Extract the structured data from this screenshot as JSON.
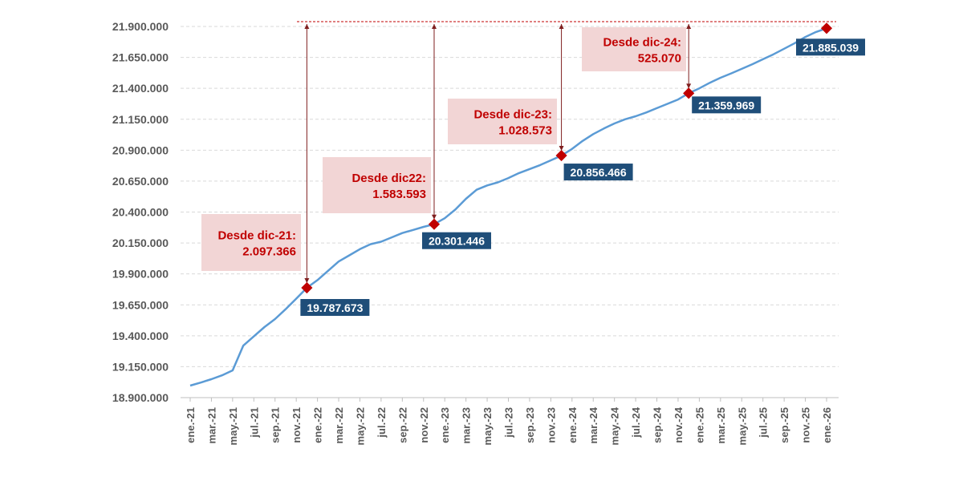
{
  "chart_data": {
    "type": "line",
    "title": "",
    "xlabel": "",
    "ylabel": "",
    "ylim": [
      18900000,
      21900000
    ],
    "ytick_step": 250000,
    "y_ticks": [
      "18.900.000",
      "19.150.000",
      "19.400.000",
      "19.650.000",
      "19.900.000",
      "20.150.000",
      "20.400.000",
      "20.650.000",
      "20.900.000",
      "21.150.000",
      "21.400.000",
      "21.650.000",
      "21.900.000"
    ],
    "x_tick_labels": [
      "ene.-21",
      "mar.-21",
      "may.-21",
      "jul.-21",
      "sep.-21",
      "nov.-21",
      "ene.-22",
      "mar.-22",
      "may.-22",
      "jul.-22",
      "sep.-22",
      "nov.-22",
      "ene.-23",
      "mar.-23",
      "may.-23",
      "jul.-23",
      "sep.-23",
      "nov.-23",
      "ene.-24",
      "mar.-24",
      "may.-24",
      "jul.-24",
      "sep.-24",
      "nov.-24",
      "ene.-25",
      "mar.-25",
      "may.-25",
      "jul.-25",
      "sep.-25",
      "nov.-25",
      "ene.-26"
    ],
    "x_start": "2021-01",
    "x_end": "2026-01",
    "grid": true,
    "line_color": "#5b9bd5",
    "marker_color": "#c00000",
    "label_box_color": "#1f4e79",
    "annotation_box_color": "#f2d5d5",
    "annotation_text_color": "#c00000",
    "values": [
      18997000,
      19022000,
      19049000,
      19080000,
      19120000,
      19320000,
      19395000,
      19470000,
      19535000,
      19615000,
      19700000,
      19787673,
      19850000,
      19925000,
      20000000,
      20050000,
      20100000,
      20140000,
      20160000,
      20195000,
      20230000,
      20255000,
      20280000,
      20301446,
      20350000,
      20420000,
      20507000,
      20580000,
      20615000,
      20640000,
      20675000,
      20715000,
      20747000,
      20780000,
      20818000,
      20856466,
      20910000,
      20975000,
      21030000,
      21075000,
      21116000,
      21150000,
      21174000,
      21205000,
      21240000,
      21275000,
      21310000,
      21359969,
      21400000,
      21445000,
      21485000,
      21520000,
      21557000,
      21595000,
      21635000,
      21675000,
      21720000,
      21765000,
      21815000,
      21855000,
      21885039
    ],
    "highlighted_points": [
      {
        "month": "2021-12",
        "value": 19787673,
        "label": "19.787.673",
        "annotation_line1": "Desde dic-21:",
        "annotation_line2": "2.097.366"
      },
      {
        "month": "2022-12",
        "value": 20301446,
        "label": "20.301.446",
        "annotation_line1": "Desde dic22:",
        "annotation_line2": "1.583.593"
      },
      {
        "month": "2023-12",
        "value": 20856466,
        "label": "20.856.466",
        "annotation_line1": "Desde dic-23:",
        "annotation_line2": "1.028.573"
      },
      {
        "month": "2024-12",
        "value": 21359969,
        "label": "21.359.969",
        "annotation_line1": "Desde dic-24:",
        "annotation_line2": "525.070"
      },
      {
        "month": "2026-01",
        "value": 21885039,
        "label": "21.885.039"
      }
    ]
  }
}
